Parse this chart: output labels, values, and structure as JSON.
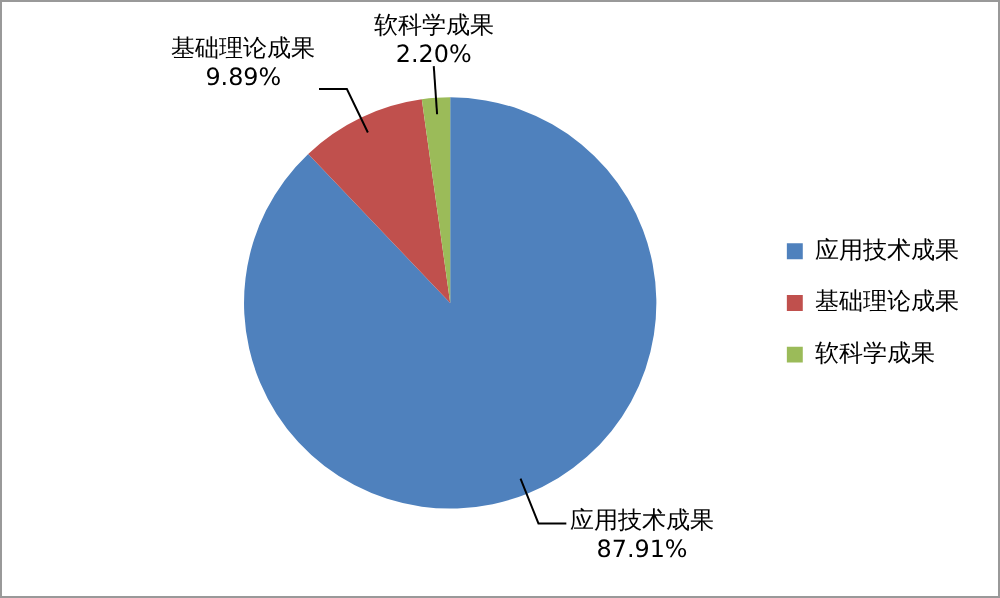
{
  "chart_data": {
    "type": "pie",
    "categories": [
      "应用技术成果",
      "基础理论成果",
      "软科学成果"
    ],
    "values": [
      87.91,
      9.89,
      2.2
    ],
    "colors": [
      "#4f81bd",
      "#c0504d",
      "#9bbb59"
    ],
    "value_labels": [
      "87.91%",
      "9.89%",
      "2.20%"
    ],
    "legend": "right"
  }
}
